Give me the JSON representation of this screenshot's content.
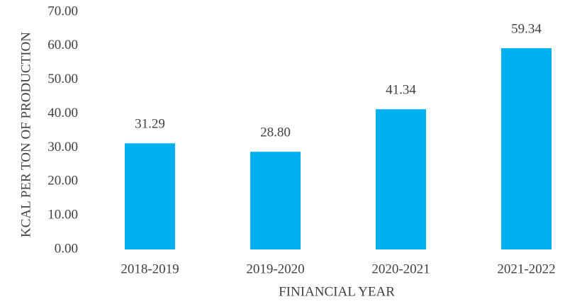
{
  "chart_data": {
    "type": "bar",
    "x_label": "FINIANCIAL YEAR",
    "y_label": "KCAL PER TON OF PRODUCTION",
    "categories": [
      "2018-2019",
      "2019-2020",
      "2020-2021",
      "2021-2022"
    ],
    "values": [
      31.29,
      28.8,
      41.34,
      59.34
    ],
    "value_labels": [
      "31.29",
      "28.80",
      "41.34",
      "59.34"
    ],
    "color": "#00b0f0",
    "ylim": [
      0,
      70
    ],
    "yticks": [
      {
        "value": 0,
        "label": "0.00"
      },
      {
        "value": 10,
        "label": "10.00"
      },
      {
        "value": 20,
        "label": "20.00"
      },
      {
        "value": 30,
        "label": "30.00"
      },
      {
        "value": 40,
        "label": "40.00"
      },
      {
        "value": 50,
        "label": "50.00"
      },
      {
        "value": 60,
        "label": "60.00"
      },
      {
        "value": 70,
        "label": "70.00"
      }
    ],
    "grid": false
  }
}
